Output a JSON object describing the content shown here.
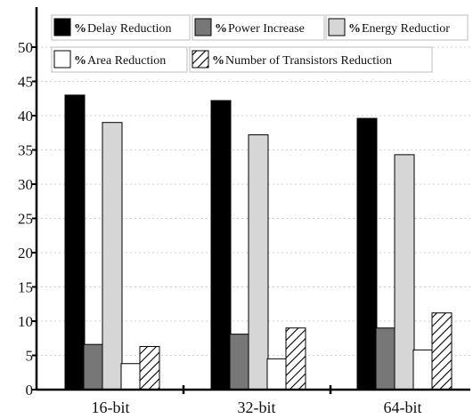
{
  "chart_data": {
    "type": "bar",
    "categories": [
      "16-bit",
      "32-bit",
      "64-bit"
    ],
    "ylim": [
      0,
      50
    ],
    "yticks": [
      0,
      5,
      10,
      15,
      20,
      25,
      30,
      35,
      40,
      45,
      50
    ],
    "grid": true,
    "legend_placement": "top",
    "series": [
      {
        "prefix": "%",
        "name": "Delay Reduction",
        "values": [
          43,
          42.2,
          39.6
        ],
        "color": "#000000",
        "pattern": "solid"
      },
      {
        "prefix": "%",
        "name": "Power Increase",
        "values": [
          6.6,
          8.1,
          9
        ],
        "color": "#777777",
        "pattern": "solid"
      },
      {
        "prefix": "%",
        "name": "Energy Reductior",
        "values": [
          39,
          37.2,
          34.3
        ],
        "color": "#d6d6d6",
        "pattern": "solid"
      },
      {
        "prefix": "%",
        "name": "Area Reduction",
        "values": [
          3.8,
          4.5,
          5.8
        ],
        "color": "#ffffff",
        "pattern": "solid"
      },
      {
        "prefix": "%",
        "name": "Number of Transistors Reduction",
        "values": [
          6.3,
          9,
          11.2
        ],
        "color": "#ffffff",
        "pattern": "hatch"
      }
    ]
  }
}
